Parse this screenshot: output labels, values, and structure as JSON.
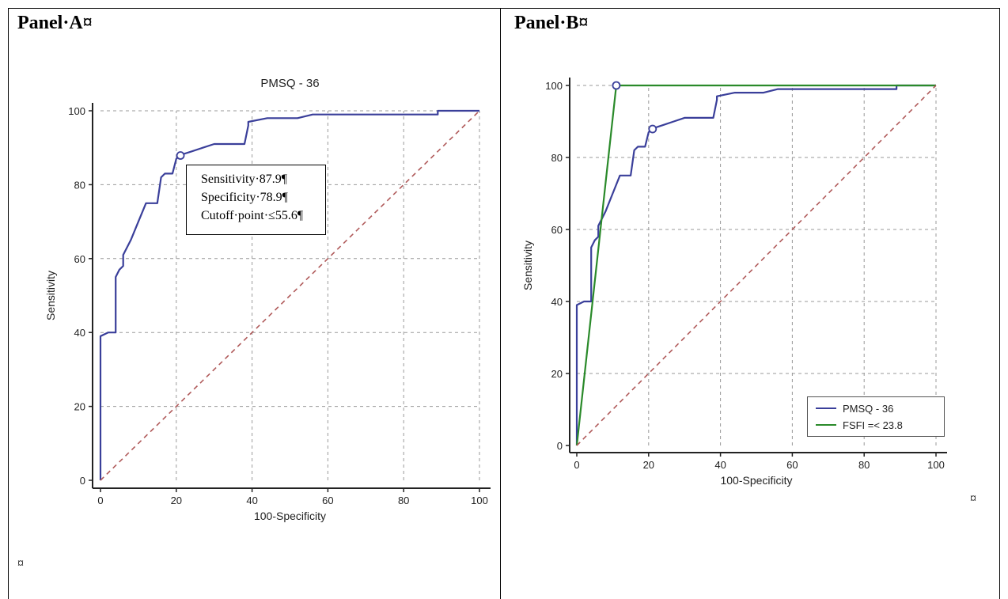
{
  "panel_a": {
    "title": "Panel·A¤",
    "pilcrow": "¤",
    "annotation": [
      "Sensitivity·87.9¶",
      "Specificity·78.9¶",
      "Cutoff·point·≤55.6¶"
    ]
  },
  "panel_b": {
    "title": "Panel·B¤",
    "pilcrow": "¤"
  },
  "chart_data": [
    {
      "type": "line",
      "title": "PMSQ - 36",
      "xlabel": "100-Specificity",
      "ylabel": "Sensitivity",
      "xlim": [
        0,
        100
      ],
      "ylim": [
        0,
        100
      ],
      "xticks": [
        0,
        20,
        40,
        60,
        80,
        100
      ],
      "yticks": [
        0,
        20,
        40,
        60,
        80,
        100
      ],
      "grid": true,
      "colors": {
        "roc": "#3a3f9a",
        "diagonal": "#b05a5a"
      },
      "series": [
        {
          "name": "PMSQ - 36",
          "x": [
            0,
            0,
            2,
            4,
            4,
            5,
            6,
            6,
            8,
            10,
            12,
            12,
            15,
            16,
            17,
            19,
            20,
            21,
            24,
            27,
            30,
            36,
            38,
            39,
            39,
            44,
            52,
            56,
            60,
            89,
            89,
            100
          ],
          "y": [
            0,
            39,
            40,
            40,
            55,
            57,
            58,
            61,
            65,
            70,
            75,
            75,
            75,
            82,
            83,
            83,
            87,
            88,
            89,
            90,
            91,
            91,
            91,
            96,
            97,
            98,
            98,
            99,
            99,
            99,
            100,
            100
          ]
        },
        {
          "name": "reference",
          "x": [
            0,
            100
          ],
          "y": [
            0,
            100
          ]
        }
      ],
      "cutoff_point": {
        "x": 21.1,
        "y": 87.9
      }
    },
    {
      "type": "line",
      "title": "",
      "xlabel": "100-Specificity",
      "ylabel": "Sensitivity",
      "xlim": [
        0,
        100
      ],
      "ylim": [
        0,
        100
      ],
      "xticks": [
        0,
        20,
        40,
        60,
        80,
        100
      ],
      "yticks": [
        0,
        20,
        40,
        60,
        80,
        100
      ],
      "grid": true,
      "legend": "bottom-right",
      "colors": {
        "pmsq": "#3a3f9a",
        "fsfi": "#2a8a2a",
        "diagonal": "#b05a5a"
      },
      "series": [
        {
          "name": "PMSQ - 36",
          "x": [
            0,
            0,
            2,
            4,
            4,
            5,
            6,
            6,
            8,
            10,
            12,
            12,
            15,
            16,
            17,
            19,
            20,
            21,
            24,
            27,
            30,
            36,
            38,
            39,
            39,
            44,
            52,
            56,
            60,
            89,
            89,
            100
          ],
          "y": [
            0,
            39,
            40,
            40,
            55,
            57,
            58,
            61,
            65,
            70,
            75,
            75,
            75,
            82,
            83,
            83,
            87,
            88,
            89,
            90,
            91,
            91,
            91,
            96,
            97,
            98,
            98,
            99,
            99,
            99,
            100,
            100
          ]
        },
        {
          "name": "FSFI =< 23.8",
          "x": [
            0,
            11,
            100
          ],
          "y": [
            0,
            100,
            100
          ]
        },
        {
          "name": "reference",
          "x": [
            0,
            100
          ],
          "y": [
            0,
            100
          ]
        }
      ],
      "cutoff_points": [
        {
          "x": 21.1,
          "y": 87.9
        },
        {
          "x": 11,
          "y": 100
        }
      ]
    }
  ]
}
